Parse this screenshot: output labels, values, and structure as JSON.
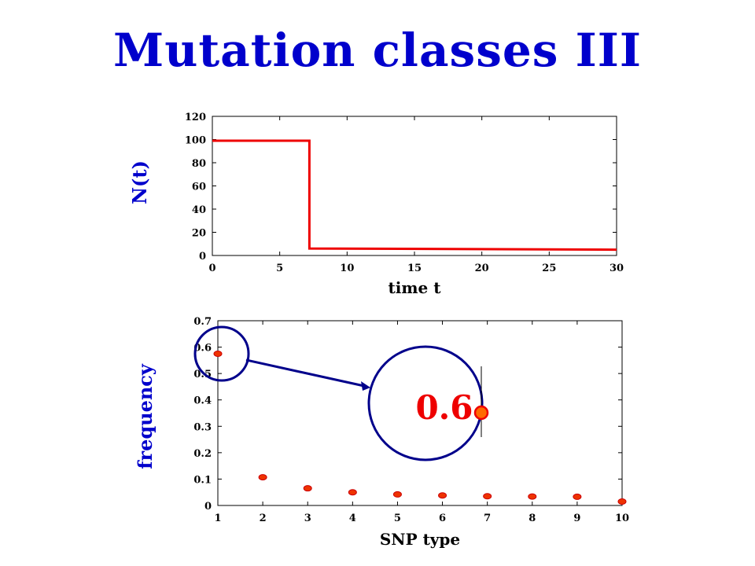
{
  "slide": {
    "title": "Mutation classes III"
  },
  "chart_data": [
    {
      "type": "line",
      "x": [
        0,
        7.2,
        7.2,
        30
      ],
      "y": [
        99,
        99,
        6,
        5
      ],
      "xlabel": "time t",
      "ylabel": "N(t)",
      "xlim": [
        0,
        30
      ],
      "ylim": [
        0,
        120
      ],
      "xticks": [
        0,
        5,
        10,
        15,
        20,
        25,
        30
      ],
      "yticks": [
        0,
        20,
        40,
        60,
        80,
        100,
        120
      ],
      "grid": false,
      "series_color": "#ee0000"
    },
    {
      "type": "scatter",
      "x": [
        1,
        2,
        3,
        4,
        5,
        6,
        7,
        8,
        9,
        10
      ],
      "y": [
        0.575,
        0.107,
        0.065,
        0.05,
        0.042,
        0.038,
        0.035,
        0.034,
        0.033,
        0.015
      ],
      "xlabel": "SNP type",
      "ylabel": "frequency",
      "xlim": [
        1,
        10
      ],
      "ylim": [
        0,
        0.7
      ],
      "xticks": [
        1,
        2,
        3,
        4,
        5,
        6,
        7,
        8,
        9,
        10
      ],
      "yticks": [
        "0",
        "0.1",
        "0.2",
        "0.3",
        "0.4",
        "0.5",
        "0.6",
        "0.7"
      ],
      "grid": false,
      "marker_color": "#ee3300",
      "annotation": {
        "text": "0.6",
        "target_index": 0,
        "color": "#ee0000",
        "circle_color": "#00008b"
      }
    }
  ]
}
